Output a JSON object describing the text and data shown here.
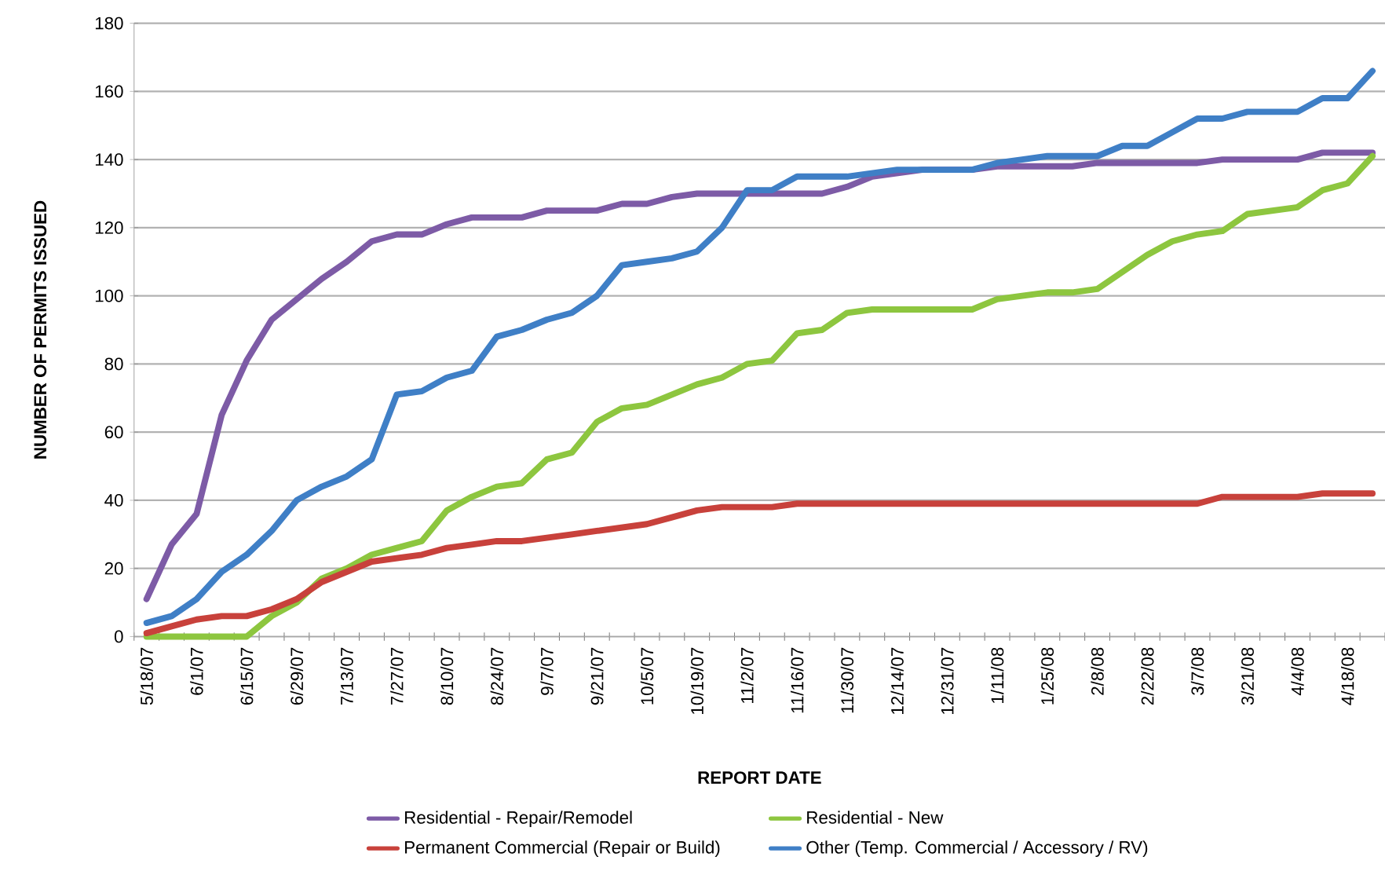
{
  "chart_data": {
    "type": "line",
    "xlabel": "REPORT DATE",
    "ylabel": "NUMBER OF PERMITS ISSUED",
    "categories": [
      "5/18/07",
      null,
      "6/1/07",
      null,
      "6/15/07",
      null,
      "6/29/07",
      null,
      "7/13/07",
      null,
      "7/27/07",
      null,
      "8/10/07",
      null,
      "8/24/07",
      null,
      "9/7/07",
      null,
      "9/21/07",
      null,
      "10/5/07",
      null,
      "10/19/07",
      null,
      "11/2/07",
      null,
      "11/16/07",
      null,
      "11/30/07",
      null,
      "12/14/07",
      null,
      "12/31/07",
      null,
      "1/11/08",
      null,
      "1/25/08",
      null,
      "2/8/08",
      null,
      "2/22/08",
      null,
      "3/7/08",
      null,
      "3/21/08",
      null,
      "4/4/08",
      null,
      "4/18/08",
      null
    ],
    "series": [
      {
        "name": "Residential - Repair/Remodel",
        "color": "#7d5ba6",
        "values": [
          11,
          27,
          36,
          65,
          81,
          93,
          99,
          105,
          110,
          116,
          118,
          118,
          121,
          123,
          123,
          123,
          125,
          125,
          125,
          127,
          127,
          129,
          130,
          130,
          130,
          130,
          130,
          130,
          132,
          135,
          136,
          137,
          137,
          137,
          138,
          138,
          138,
          138,
          139,
          139,
          139,
          139,
          139,
          140,
          140,
          140,
          140,
          142,
          142,
          142
        ]
      },
      {
        "name": "Residential - New",
        "color": "#8dc63f",
        "values": [
          0,
          0,
          0,
          0,
          0,
          6,
          10,
          17,
          20,
          24,
          26,
          28,
          37,
          41,
          44,
          45,
          52,
          54,
          63,
          67,
          68,
          71,
          74,
          76,
          80,
          81,
          89,
          90,
          95,
          96,
          96,
          96,
          96,
          96,
          99,
          100,
          101,
          101,
          102,
          107,
          112,
          116,
          118,
          119,
          124,
          125,
          126,
          131,
          133,
          141
        ]
      },
      {
        "name": "Permanent Commercial (Repair or  Build)",
        "color": "#c8413b",
        "values": [
          1,
          3,
          5,
          6,
          6,
          8,
          11,
          16,
          19,
          22,
          23,
          24,
          26,
          27,
          28,
          28,
          29,
          30,
          31,
          32,
          33,
          35,
          37,
          38,
          38,
          38,
          39,
          39,
          39,
          39,
          39,
          39,
          39,
          39,
          39,
          39,
          39,
          39,
          39,
          39,
          39,
          39,
          39,
          41,
          41,
          41,
          41,
          42,
          42,
          42
        ]
      },
      {
        "name": "Other (Temp. Commercial / Accessory / RV)",
        "color": "#3f7fc6",
        "values": [
          4,
          6,
          11,
          19,
          24,
          31,
          40,
          44,
          47,
          52,
          71,
          72,
          76,
          78,
          88,
          90,
          93,
          95,
          100,
          109,
          110,
          111,
          113,
          120,
          131,
          131,
          135,
          135,
          135,
          136,
          137,
          137,
          137,
          137,
          139,
          140,
          141,
          141,
          141,
          144,
          144,
          148,
          152,
          152,
          154,
          154,
          154,
          158,
          158,
          166
        ]
      }
    ],
    "ylim": [
      0,
      180
    ],
    "yticks": [
      0,
      20,
      40,
      60,
      80,
      100,
      120,
      140,
      160,
      180
    ],
    "grid": "y",
    "legend": "bottom",
    "line_style": "solid"
  }
}
